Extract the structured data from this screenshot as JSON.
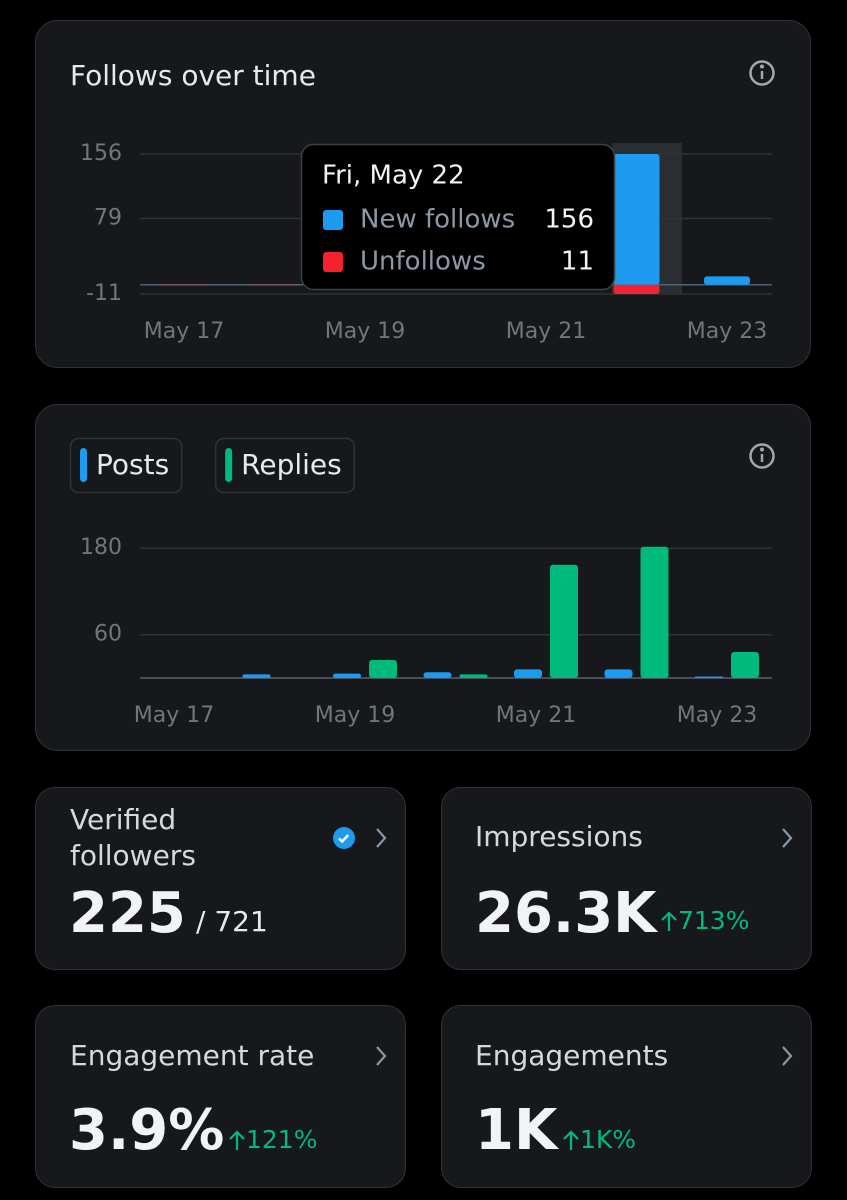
{
  "chart_data": [
    {
      "type": "bar",
      "title": "Follows over time",
      "categories": [
        "May 17",
        null,
        "May 19",
        null,
        "May 21",
        null,
        "May 23"
      ],
      "series": [
        {
          "name": "New follows",
          "color": "#1d9bf0",
          "values": [
            0,
            0,
            0,
            0,
            0,
            156,
            10
          ]
        },
        {
          "name": "Unfollows",
          "color": "#f4212e",
          "values": [
            -1,
            -1,
            0,
            0,
            0,
            -11,
            0
          ]
        }
      ],
      "stacked": true,
      "ylim": [
        -11,
        156
      ],
      "yticks": [
        -11,
        79,
        156
      ],
      "grid": true,
      "tooltip": {
        "title": "Fri, May 22",
        "values": [
          156,
          11
        ]
      }
    },
    {
      "type": "bar",
      "categories": [
        "May 17",
        null,
        "May 19",
        null,
        "May 21",
        null,
        "May 23"
      ],
      "series": [
        {
          "name": "Posts",
          "color": "#1d9bf0",
          "values": [
            0,
            5,
            6,
            8,
            12,
            12,
            2
          ]
        },
        {
          "name": "Replies",
          "color": "#00ba7c",
          "values": [
            0,
            0,
            25,
            5,
            157,
            182,
            36
          ]
        }
      ],
      "stacked": false,
      "legend": true,
      "ylim": [
        0,
        190
      ],
      "yticks": [
        60,
        180
      ],
      "grid": true
    }
  ],
  "stats": [
    {
      "label": "Verified followers",
      "value": "225",
      "total": "/ 721"
    },
    {
      "label": "Impressions",
      "value": "26.3K",
      "change": "713%"
    },
    {
      "label": "Engagement rate",
      "value": "3.9%",
      "change": "121%"
    },
    {
      "label": "Engagements",
      "value": "1K",
      "change": "1K%"
    }
  ]
}
